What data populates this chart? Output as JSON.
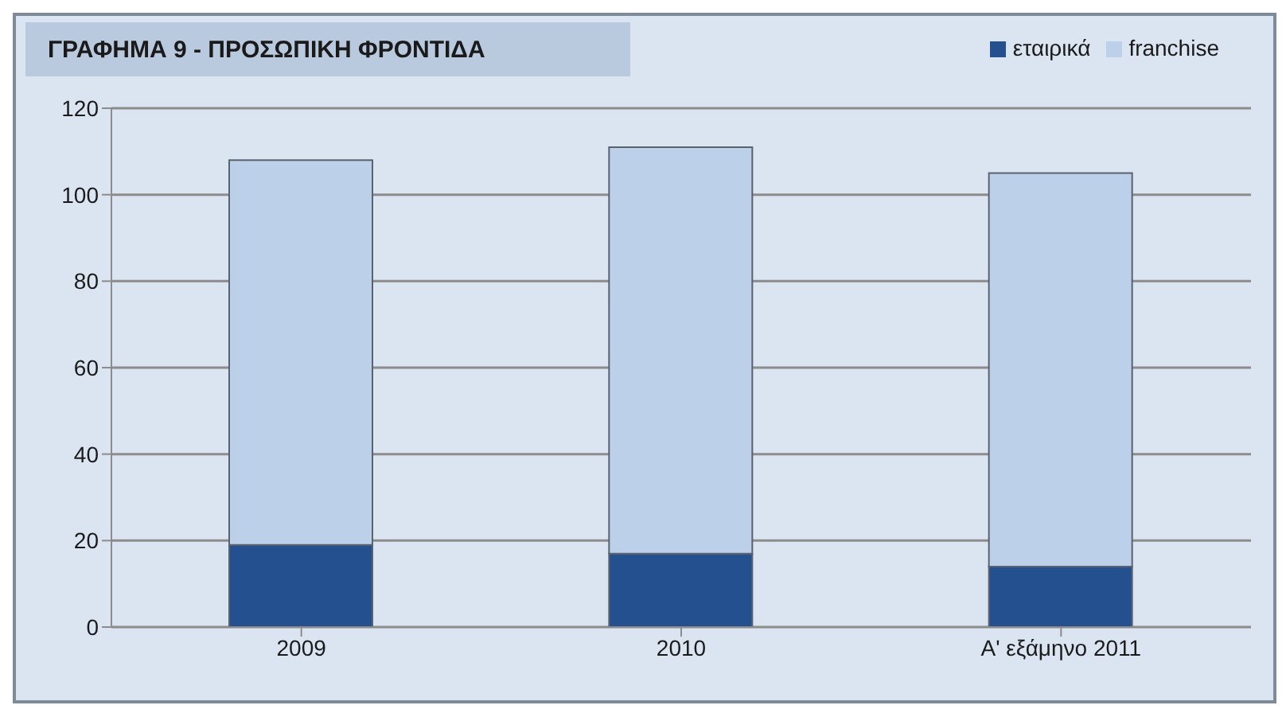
{
  "chart_data": {
    "type": "bar",
    "title": "ΓΡΑΦΗΜΑ 9  - ΠΡΟΣΩΠΙΚΗ ΦΡΟΝΤΙΔΑ",
    "categories": [
      "2009",
      "2010",
      "Α' εξάμηνο 2011"
    ],
    "stacked": true,
    "series": [
      {
        "name": "εταιρικά",
        "color": "#24508f",
        "values": [
          19,
          17,
          14
        ]
      },
      {
        "name": "franchise",
        "color": "#bcd0ea",
        "values": [
          89,
          94,
          91
        ]
      }
    ],
    "ylim": [
      0,
      120
    ],
    "yticks": [
      0,
      20,
      40,
      60,
      80,
      100,
      120
    ],
    "grid": "y",
    "legend": "top right"
  }
}
